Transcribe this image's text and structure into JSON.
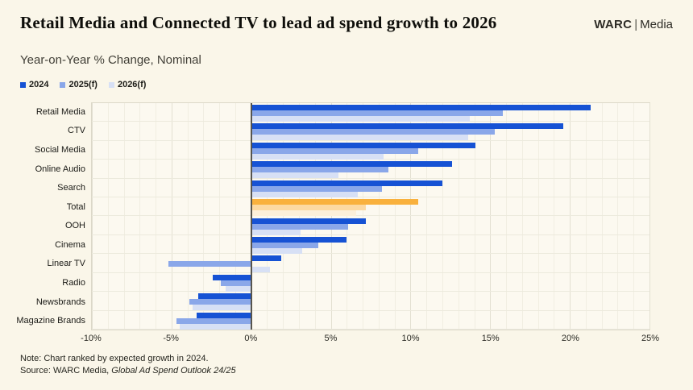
{
  "header": {
    "title": "Retail Media and Connected TV to lead ad spend growth to 2026",
    "brand": {
      "name": "WARC",
      "separator": "|",
      "unit": "Media"
    }
  },
  "subtitle": "Year-on-Year % Change, Nominal",
  "notes": {
    "note": "Note: Chart ranked by expected growth in 2024.",
    "source_prefix": "Source: WARC Media, ",
    "source_title": "Global Ad Spend Outlook 24/25"
  },
  "colors": {
    "background": "#faf6e9",
    "plot_background": "#fcf9f0",
    "series": [
      "#1652d4",
      "#8aa7e9",
      "#d7e0f5"
    ],
    "highlight_series": [
      "#f9b13d",
      "#fcd9a2",
      "#fdf0da"
    ],
    "zero_axis": "#57554e"
  },
  "chart_data": {
    "type": "bar",
    "orientation": "horizontal",
    "title": "Retail Media and Connected TV to lead ad spend growth to 2026",
    "subtitle": "Year-on-Year % Change, Nominal",
    "categories": [
      "Retail Media",
      "CTV",
      "Social Media",
      "Online Audio",
      "Search",
      "Total",
      "OOH",
      "Cinema",
      "Linear TV",
      "Radio",
      "Newsbrands",
      "Magazine Brands"
    ],
    "series": [
      {
        "name": "2024",
        "values": [
          21.3,
          19.6,
          14.1,
          12.6,
          12.0,
          10.5,
          7.2,
          6.0,
          1.9,
          -2.4,
          -3.3,
          -3.4
        ]
      },
      {
        "name": "2025(f)",
        "values": [
          15.8,
          15.3,
          10.5,
          8.6,
          8.2,
          7.2,
          6.1,
          4.2,
          -5.2,
          -1.9,
          -3.9,
          -4.7
        ]
      },
      {
        "name": "2026(f)",
        "values": [
          13.7,
          13.6,
          8.3,
          5.5,
          6.7,
          6.6,
          3.1,
          3.2,
          1.2,
          -1.6,
          -3.7,
          -4.5
        ]
      }
    ],
    "highlight_category": "Total",
    "xlim": [
      -10,
      25
    ],
    "x_tick_values": [
      -10,
      -5,
      0,
      5,
      10,
      15,
      20,
      25
    ],
    "x_tick_labels": [
      "-10%",
      "-5%",
      "0%",
      "5%",
      "10%",
      "15%",
      "20%",
      "25%"
    ],
    "minor_grid_step": 1,
    "major_grid_step": 5,
    "grid": true,
    "legend_position": "top-left",
    "unit": "percent"
  }
}
